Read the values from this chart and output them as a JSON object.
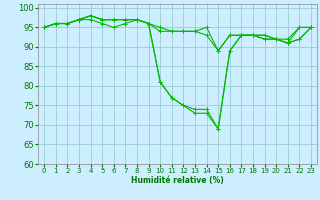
{
  "xlabel": "Humidité relative (%)",
  "background_color": "#cceeff",
  "grid_color": "#99cccc",
  "line_color": "#00bb00",
  "xlim": [
    -0.5,
    23.5
  ],
  "ylim": [
    60,
    101
  ],
  "yticks": [
    60,
    65,
    70,
    75,
    80,
    85,
    90,
    95,
    100
  ],
  "xticks": [
    0,
    1,
    2,
    3,
    4,
    5,
    6,
    7,
    8,
    9,
    10,
    11,
    12,
    13,
    14,
    15,
    16,
    17,
    18,
    19,
    20,
    21,
    22,
    23
  ],
  "series": [
    [
      95,
      96,
      96,
      97,
      97,
      96,
      95,
      96,
      97,
      96,
      95,
      94,
      94,
      94,
      95,
      89,
      93,
      93,
      93,
      92,
      92,
      92,
      95,
      95
    ],
    [
      95,
      96,
      96,
      97,
      98,
      97,
      97,
      97,
      97,
      96,
      94,
      94,
      94,
      94,
      93,
      89,
      93,
      93,
      93,
      92,
      92,
      91,
      95,
      95
    ],
    [
      95,
      96,
      96,
      97,
      98,
      97,
      97,
      97,
      97,
      96,
      81,
      77,
      75,
      73,
      73,
      69,
      89,
      93,
      93,
      93,
      92,
      91,
      92,
      95
    ],
    [
      95,
      96,
      96,
      97,
      98,
      97,
      97,
      97,
      97,
      96,
      81,
      77,
      75,
      74,
      74,
      69,
      89,
      93,
      93,
      93,
      92,
      91,
      92,
      95
    ]
  ]
}
